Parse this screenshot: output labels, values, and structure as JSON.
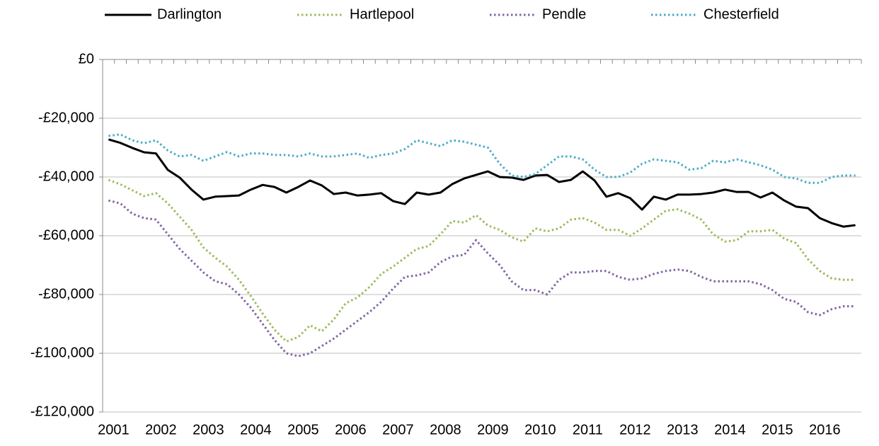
{
  "chart_data": {
    "type": "line",
    "categories": [
      "2001",
      null,
      null,
      null,
      "2002",
      null,
      null,
      null,
      "2003",
      null,
      null,
      null,
      "2004",
      null,
      null,
      null,
      "2005",
      null,
      null,
      null,
      "2006",
      null,
      null,
      null,
      "2007",
      null,
      null,
      null,
      "2008",
      null,
      null,
      null,
      "2009",
      null,
      null,
      null,
      "2010",
      null,
      null,
      null,
      "2011",
      null,
      null,
      null,
      "2012",
      null,
      null,
      null,
      "2013",
      null,
      null,
      null,
      "2014",
      null,
      null,
      null,
      "2015",
      null,
      null,
      null,
      "2016",
      null,
      null,
      null
    ],
    "series": [
      {
        "name": "Darlington",
        "color": "#000000",
        "style": "solid",
        "values": [
          -27200,
          -28400,
          -30100,
          -31600,
          -32000,
          -37600,
          -40200,
          -44300,
          -47700,
          -46700,
          -46500,
          -46300,
          -44300,
          -42700,
          -43400,
          -45300,
          -43400,
          -41200,
          -42900,
          -45800,
          -45300,
          -46300,
          -46000,
          -45500,
          -48200,
          -49200,
          -45300,
          -46000,
          -45300,
          -42400,
          -40500,
          -39300,
          -38100,
          -40000,
          -40200,
          -41000,
          -39500,
          -39300,
          -41700,
          -41000,
          -38100,
          -41200,
          -46700,
          -45500,
          -47200,
          -51100,
          -46700,
          -47700,
          -46000,
          -46000,
          -45800,
          -45300,
          -44300,
          -45100,
          -45100,
          -47000,
          -45300,
          -48000,
          -50100,
          -50600,
          -54000,
          -55700,
          -56900,
          -56400
        ]
      },
      {
        "name": "Hartlepool",
        "color": "#9bbb59",
        "style": "dotted",
        "values": [
          -41000,
          -42500,
          -44500,
          -46500,
          -45500,
          -49000,
          -53500,
          -58000,
          -64000,
          -67500,
          -70500,
          -75000,
          -80500,
          -86500,
          -92000,
          -96000,
          -94500,
          -90500,
          -92500,
          -88500,
          -83000,
          -81000,
          -77500,
          -73000,
          -70500,
          -67500,
          -64500,
          -63500,
          -59500,
          -55000,
          -55500,
          -53000,
          -56500,
          -58000,
          -60500,
          -62000,
          -57500,
          -58500,
          -57500,
          -54500,
          -54000,
          -55500,
          -58000,
          -58000,
          -60000,
          -57500,
          -54500,
          -51500,
          -51000,
          -52500,
          -54500,
          -59500,
          -62000,
          -61500,
          -58500,
          -58500,
          -58000,
          -61000,
          -62500,
          -68000,
          -72000,
          -74500,
          -75000,
          -75000
        ]
      },
      {
        "name": "Pendle",
        "color": "#8064a2",
        "style": "dotted",
        "values": [
          -48000,
          -49000,
          -52500,
          -54000,
          -54500,
          -59500,
          -64500,
          -68500,
          -72500,
          -75500,
          -76500,
          -80000,
          -84500,
          -90000,
          -95500,
          -100000,
          -101000,
          -100000,
          -97500,
          -95000,
          -92000,
          -89000,
          -86000,
          -82500,
          -78000,
          -74000,
          -73500,
          -72500,
          -69000,
          -67000,
          -66500,
          -61500,
          -66000,
          -70000,
          -75500,
          -78500,
          -78500,
          -80000,
          -75000,
          -72500,
          -72500,
          -72000,
          -72000,
          -74000,
          -75000,
          -74500,
          -73000,
          -72000,
          -71500,
          -72000,
          -74000,
          -75500,
          -75500,
          -75500,
          -75500,
          -76500,
          -78500,
          -81500,
          -82500,
          -86000,
          -87000,
          -85000,
          -84000,
          -84000
        ]
      },
      {
        "name": "Chesterfield",
        "color": "#4bacc6",
        "style": "dotted",
        "values": [
          -26000,
          -25500,
          -27500,
          -28500,
          -27500,
          -31000,
          -33000,
          -32500,
          -34500,
          -33000,
          -31500,
          -33000,
          -32000,
          -32000,
          -32500,
          -32500,
          -33000,
          -32000,
          -33000,
          -33000,
          -32500,
          -32000,
          -33500,
          -32500,
          -32000,
          -30500,
          -27500,
          -28500,
          -29500,
          -27500,
          -28000,
          -29000,
          -30000,
          -35500,
          -39500,
          -40000,
          -39000,
          -36000,
          -33000,
          -33000,
          -34000,
          -37500,
          -40000,
          -40000,
          -38500,
          -35500,
          -34000,
          -34500,
          -35000,
          -37500,
          -37000,
          -34500,
          -35000,
          -34000,
          -35000,
          -36000,
          -37500,
          -40000,
          -40500,
          -42000,
          -42000,
          -40000,
          -39500,
          -39500
        ]
      }
    ],
    "ylim": [
      -120000,
      0
    ],
    "yticks": [
      {
        "value": -120000,
        "label": "-£120,000"
      },
      {
        "value": -100000,
        "label": "-£100,000"
      },
      {
        "value": -80000,
        "label": "-£80,000"
      },
      {
        "value": -60000,
        "label": "-£60,000"
      },
      {
        "value": -40000,
        "label": "-£40,000"
      },
      {
        "value": -20000,
        "label": "-£20,000"
      },
      {
        "value": 0,
        "label": "£0"
      }
    ],
    "grid": true,
    "legend": "top"
  }
}
